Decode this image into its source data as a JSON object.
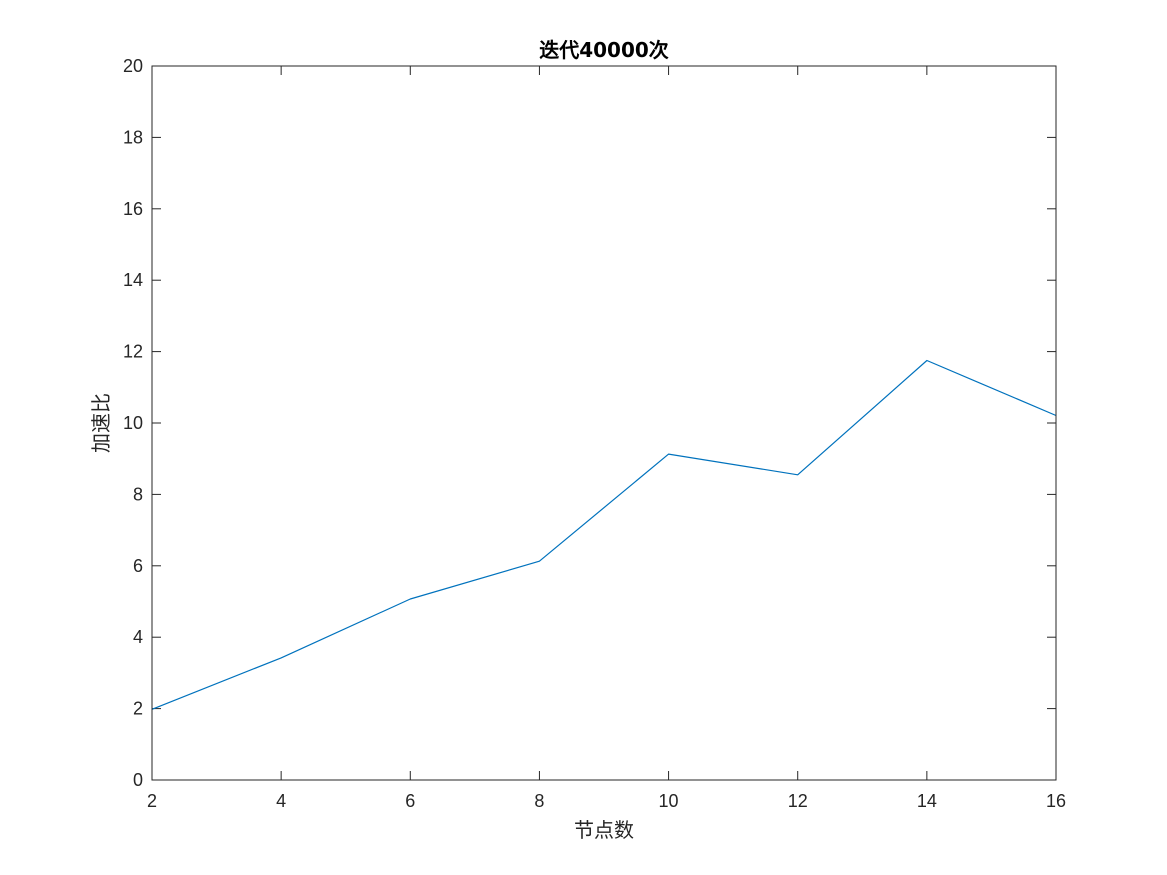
{
  "chart_data": {
    "type": "line",
    "title": "迭代40000次",
    "xlabel": "节点数",
    "ylabel": "加速比",
    "xlim": [
      2,
      16
    ],
    "ylim": [
      0,
      20
    ],
    "xticks": [
      2,
      4,
      6,
      8,
      10,
      12,
      14,
      16
    ],
    "yticks": [
      0,
      2,
      4,
      6,
      8,
      10,
      12,
      14,
      16,
      18,
      20
    ],
    "grid": false,
    "series": [
      {
        "color": "#0072bd",
        "x": [
          2,
          4,
          6,
          8,
          10,
          12,
          14,
          16
        ],
        "y": [
          1.98,
          3.42,
          5.07,
          6.13,
          9.13,
          8.55,
          11.75,
          10.21
        ]
      }
    ]
  }
}
